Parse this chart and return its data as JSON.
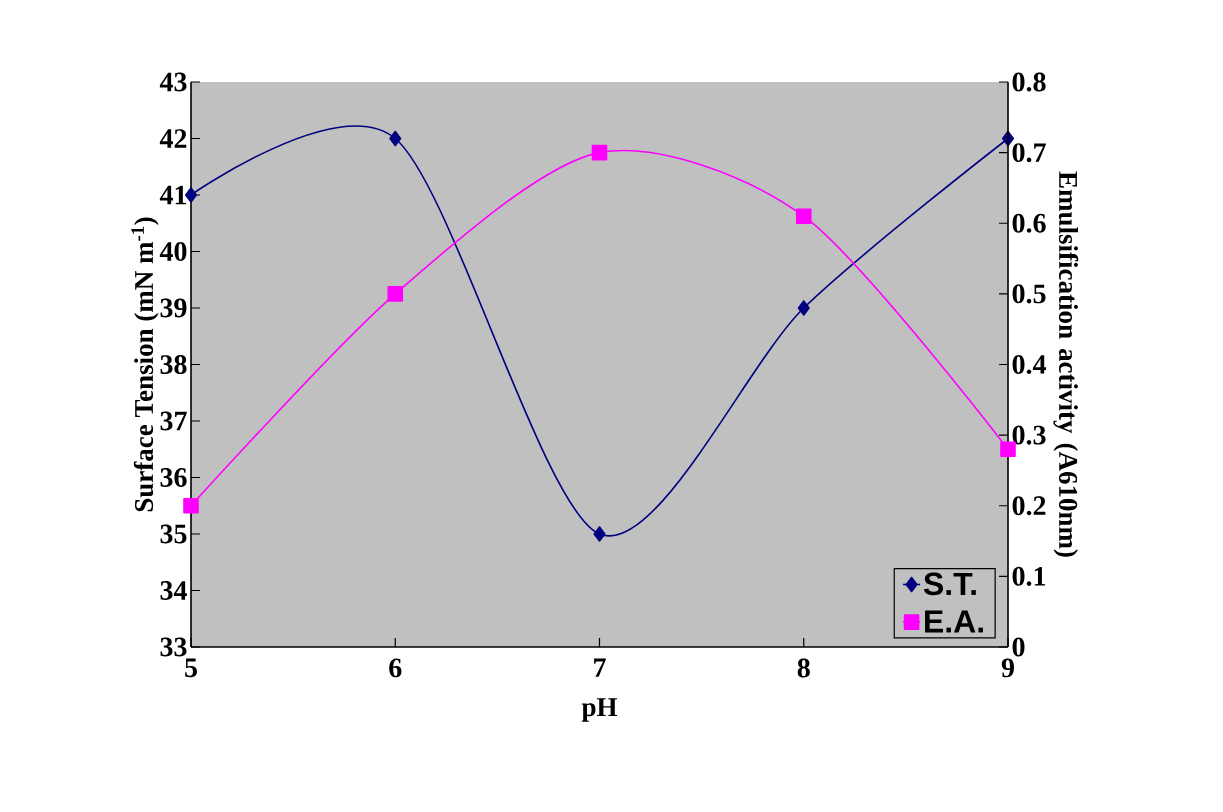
{
  "chart_data": {
    "type": "line",
    "xlabel": "pH",
    "ylabel": "Surface Tension (mN m$^{-1}$)",
    "y2label": "Emulsification activity (A610nm)",
    "x": [
      5,
      6,
      7,
      8,
      9
    ],
    "series": [
      {
        "name": "S.T.",
        "color": "#000080",
        "marker": "diamond",
        "values": [
          41,
          42,
          35,
          39,
          42
        ]
      },
      {
        "name": "E.A.",
        "color": "#ff00ff",
        "marker": "square",
        "axis": "y2",
        "values": [
          0.2,
          0.5,
          0.7,
          0.61,
          0.28
        ]
      }
    ],
    "xlim": [
      5,
      9
    ],
    "xticks": [
      5,
      6,
      7,
      8,
      9
    ],
    "ylim": [
      33,
      43
    ],
    "yticks": [
      33,
      34,
      35,
      36,
      37,
      38,
      39,
      40,
      41,
      42,
      43
    ],
    "y2lim": [
      0,
      0.8
    ],
    "y2ticks": [
      0,
      0.1,
      0.2,
      0.3,
      0.4,
      0.5,
      0.6,
      0.7,
      0.8
    ],
    "grid": false,
    "legend": "bottom right",
    "line_style": "solid"
  }
}
